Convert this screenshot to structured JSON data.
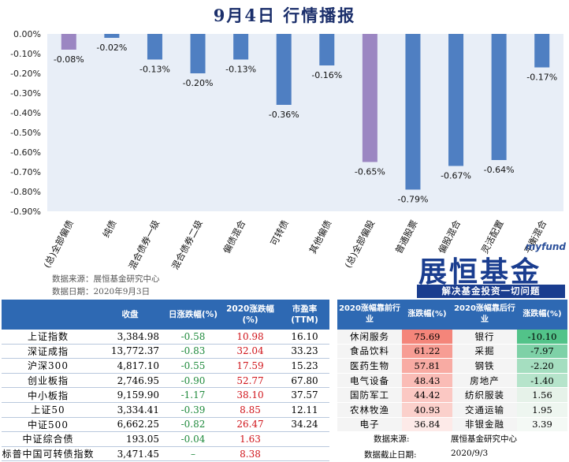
{
  "title": "9月4日  行情播报",
  "chart_data": {
    "type": "bar",
    "categories": [
      "(总)全部偏债",
      "纯债",
      "混合债券一级",
      "混合债券二级",
      "偏债混合",
      "可转债",
      "其他偏债",
      "(总)全部偏股",
      "普通股票",
      "偏股混合",
      "灵活配置",
      "平衡混合"
    ],
    "values": [
      -0.08,
      -0.02,
      -0.13,
      -0.2,
      -0.13,
      -0.36,
      -0.16,
      -0.65,
      -0.79,
      -0.67,
      -0.64,
      -0.17
    ],
    "labels": [
      "-0.08%",
      "-0.02%",
      "-0.13%",
      "-0.20%",
      "-0.13%",
      "-0.36%",
      "-0.16%",
      "-0.65%",
      "-0.79%",
      "-0.67%",
      "-0.64%",
      "-0.17%"
    ],
    "highlight": [
      0,
      7
    ],
    "ylim": [
      -0.9,
      0
    ],
    "yticks": [
      "0.00%",
      "-0.10%",
      "-0.20%",
      "-0.30%",
      "-0.40%",
      "-0.50%",
      "-0.60%",
      "-0.70%",
      "-0.80%",
      "-0.90%"
    ],
    "colors": {
      "bar": "#4f7fc2",
      "highlight": "#9b86c2",
      "plot_bg": "#e8eef7"
    }
  },
  "source": {
    "line1": "数据来源：展恒基金研究中心",
    "line2": "数据日期：2020年9月3日"
  },
  "brand": {
    "en": "myfund",
    "cn": "展恒基金",
    "slogan": "解决基金投资一切问题"
  },
  "index_table": {
    "headers": [
      "",
      "收盘",
      "日涨跌幅(%)",
      "2020涨跌幅(%)",
      "市盈率(TTM)"
    ],
    "rows": [
      {
        "name": "上证指数",
        "close": "3,384.98",
        "day": "-0.58",
        "ytd": "10.98",
        "pe": "16.10"
      },
      {
        "name": "深证成指",
        "close": "13,772.37",
        "day": "-0.83",
        "ytd": "32.04",
        "pe": "33.23"
      },
      {
        "name": "沪深300",
        "close": "4,817.10",
        "day": "-0.55",
        "ytd": "17.59",
        "pe": "15.23"
      },
      {
        "name": "创业板指",
        "close": "2,746.95",
        "day": "-0.90",
        "ytd": "52.77",
        "pe": "67.80"
      },
      {
        "name": "中小板指",
        "close": "9,159.90",
        "day": "-1.17",
        "ytd": "38.10",
        "pe": "37.57"
      },
      {
        "name": "上证50",
        "close": "3,334.41",
        "day": "-0.39",
        "ytd": "8.85",
        "pe": "12.11"
      },
      {
        "name": "中证500",
        "close": "6,662.25",
        "day": "-0.82",
        "ytd": "26.47",
        "pe": "34.24"
      },
      {
        "name": "中证综合债",
        "close": "193.05",
        "day": "-0.04",
        "ytd": "1.63",
        "pe": ""
      },
      {
        "name": "标普中国可转债指数",
        "close": "3,471.45",
        "day": "–",
        "ytd": "8.38",
        "pe": ""
      }
    ]
  },
  "industry_table": {
    "headers": [
      "2020涨幅靠前行业",
      "涨跌幅(%)",
      "2020涨幅靠后行业",
      "涨跌幅(%)"
    ],
    "rows": [
      {
        "top": "休闲服务",
        "top_val": "75.69",
        "bottom": "银行",
        "bottom_val": "-10.10"
      },
      {
        "top": "食品饮料",
        "top_val": "61.22",
        "bottom": "采掘",
        "bottom_val": "-7.97"
      },
      {
        "top": "医药生物",
        "top_val": "57.81",
        "bottom": "钢铁",
        "bottom_val": "-2.20"
      },
      {
        "top": "电气设备",
        "top_val": "48.43",
        "bottom": "房地产",
        "bottom_val": "-1.40"
      },
      {
        "top": "国防军工",
        "top_val": "44.42",
        "bottom": "纺织服装",
        "bottom_val": "1.56"
      },
      {
        "top": "农林牧渔",
        "top_val": "40.93",
        "bottom": "交通运输",
        "bottom_val": "1.95"
      },
      {
        "top": "电子",
        "top_val": "36.84",
        "bottom": "非银金融",
        "bottom_val": "3.39"
      }
    ],
    "top_colors": [
      "#f4857a",
      "#f79d94",
      "#f8aba3",
      "#fabcb6",
      "#fbc8c3",
      "#fbd0cb",
      "#fdeae8"
    ],
    "bottom_colors": [
      "#52c389",
      "#7ed1a7",
      "#a5dec0",
      "#b6e4cb",
      "#e6f2e9",
      "#eef6f0",
      "#f4f9f5"
    ]
  },
  "table_source": {
    "label1": "数据来源:",
    "value1": "展恒基金研究中心",
    "label2": "数据截止日期:",
    "value2": "2020/9/3"
  }
}
